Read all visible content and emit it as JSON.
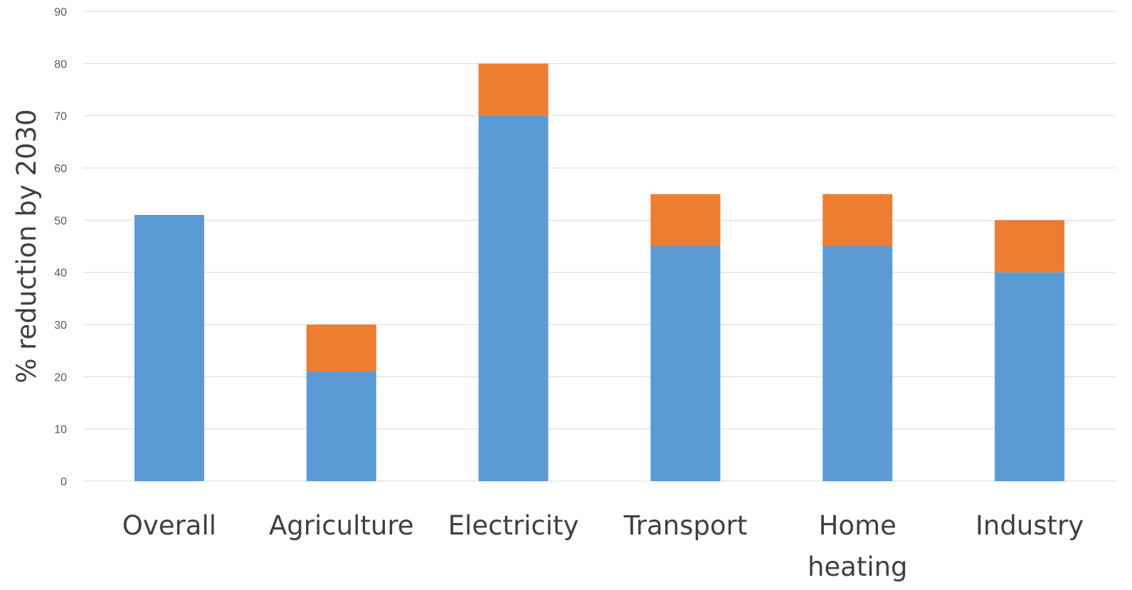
{
  "chart_data": {
    "type": "bar",
    "stacked": true,
    "categories": [
      "Overall",
      "Agriculture",
      "Electricity",
      "Transport",
      "Home heating",
      "Industry"
    ],
    "series": [
      {
        "color": "#5b9bd5",
        "values": [
          51,
          21,
          70,
          45,
          45,
          40
        ]
      },
      {
        "color": "#ed7d31",
        "values": [
          0,
          9,
          10,
          10,
          10,
          10
        ]
      }
    ],
    "title": "",
    "xlabel": "",
    "ylabel": "% reduction by 2030",
    "ylim": [
      0,
      90
    ],
    "yticks": [
      0,
      10,
      20,
      30,
      40,
      50,
      60,
      70,
      80,
      90
    ],
    "grid": true,
    "legend": "none"
  }
}
